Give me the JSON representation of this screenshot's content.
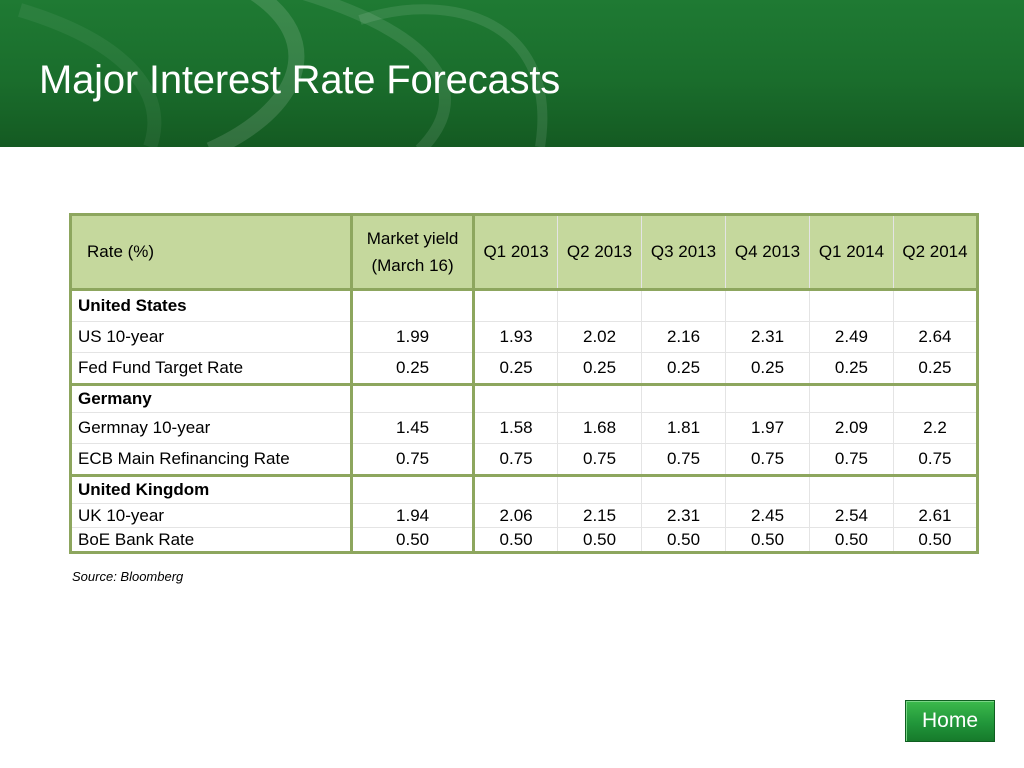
{
  "title": "Major Interest Rate Forecasts",
  "table": {
    "headers": {
      "rate": "Rate (%)",
      "market_line1": "Market yield",
      "market_line2": "(March 16)",
      "quarters": [
        "Q1 2013",
        "Q2 2013",
        "Q3 2013",
        "Q4 2013",
        "Q1 2014",
        "Q2 2014"
      ]
    },
    "sections": [
      {
        "name": "United States",
        "rows": [
          {
            "label": "US 10-year",
            "values": [
              "1.99",
              "1.93",
              "2.02",
              "2.16",
              "2.31",
              "2.49",
              "2.64"
            ]
          },
          {
            "label": "Fed Fund Target Rate",
            "values": [
              "0.25",
              "0.25",
              "0.25",
              "0.25",
              "0.25",
              "0.25",
              "0.25"
            ]
          }
        ]
      },
      {
        "name": "Germany",
        "rows": [
          {
            "label": "Germnay 10-year",
            "values": [
              "1.45",
              "1.58",
              "1.68",
              "1.81",
              "1.97",
              "2.09",
              "2.2"
            ]
          },
          {
            "label": "ECB Main Refinancing Rate",
            "values": [
              "0.75",
              "0.75",
              "0.75",
              "0.75",
              "0.75",
              "0.75",
              "0.75"
            ]
          }
        ]
      },
      {
        "name": "United Kingdom",
        "rows": [
          {
            "label": "UK 10-year",
            "values": [
              "1.94",
              "2.06",
              "2.15",
              "2.31",
              "2.45",
              "2.54",
              "2.61"
            ]
          },
          {
            "label": "BoE Bank Rate",
            "values": [
              "0.50",
              "0.50",
              "0.50",
              "0.50",
              "0.50",
              "0.50",
              "0.50"
            ]
          }
        ]
      }
    ]
  },
  "source": "Source: Bloomberg",
  "home_button": {
    "label": "Home"
  },
  "colors": {
    "header_green": "#1a6d2c",
    "table_header_fill": "#c5d89d",
    "table_border": "#8da65e",
    "button_green": "#21963a"
  }
}
